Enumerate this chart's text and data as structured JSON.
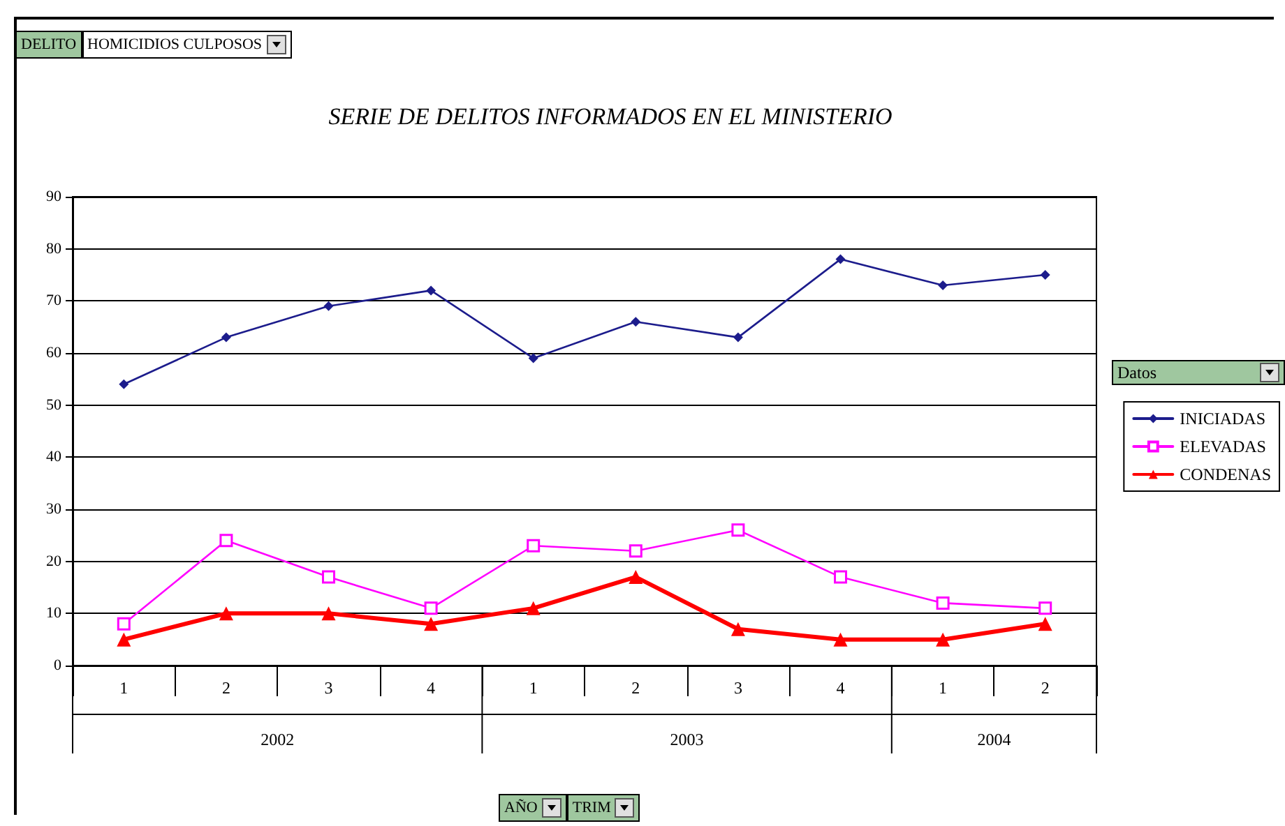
{
  "chart_data": {
    "type": "line",
    "title": "SERIE DE DELITOS INFORMADOS EN EL MINISTERIO",
    "legend_title": "Datos",
    "categories": [
      "1",
      "2",
      "3",
      "4",
      "1",
      "2",
      "3",
      "4",
      "1",
      "2"
    ],
    "series": [
      {
        "name": "INICIADAS",
        "color": "#1c1c8c",
        "marker": "diamond",
        "values": [
          54,
          63,
          69,
          72,
          59,
          66,
          63,
          78,
          73,
          75
        ]
      },
      {
        "name": "ELEVADAS",
        "color": "#ff00ff",
        "marker": "square",
        "values": [
          8,
          24,
          17,
          11,
          23,
          22,
          26,
          17,
          12,
          11
        ]
      },
      {
        "name": "CONDENAS",
        "color": "#ff0000",
        "marker": "triangle",
        "values": [
          5,
          10,
          10,
          8,
          11,
          17,
          7,
          5,
          5,
          8
        ]
      }
    ],
    "ylim": [
      0,
      90
    ],
    "yticks": [
      0,
      10,
      20,
      30,
      40,
      50,
      60,
      70,
      80,
      90
    ],
    "grid": "y",
    "legend": "right",
    "line_style": "solid",
    "annotations": [
      "DELITO",
      "HOMICIDIOS CULPOSOS",
      "AÑO",
      "TRIM",
      "2002",
      "2003",
      "2004"
    ]
  }
}
